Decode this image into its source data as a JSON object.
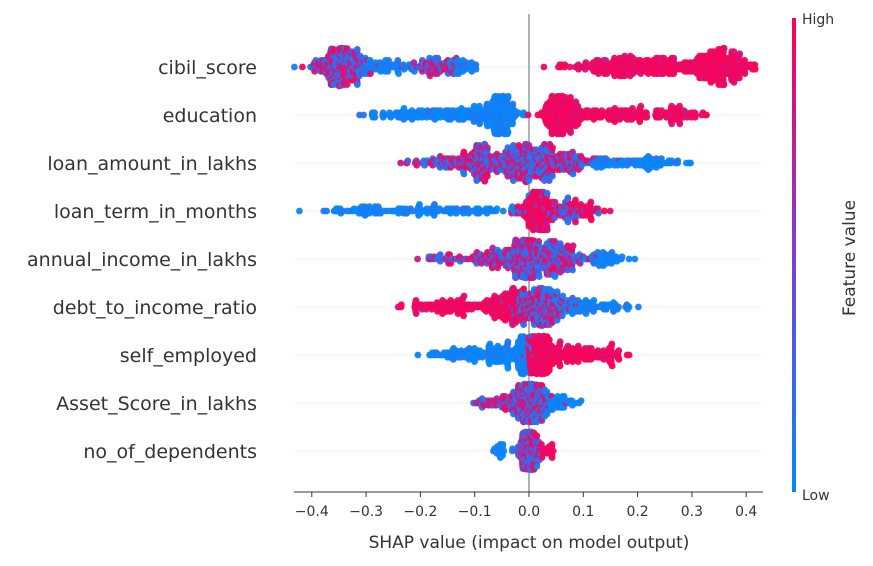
{
  "chart_data": {
    "type": "scatter",
    "subtype": "shap-beeswarm",
    "xlabel": "SHAP value (impact on model output)",
    "xlim": [
      -0.42,
      0.42
    ],
    "xticks": [
      -0.4,
      -0.3,
      -0.2,
      -0.1,
      0.0,
      0.1,
      0.2,
      0.3,
      0.4
    ],
    "xtick_labels": [
      "−0.4",
      "−0.3",
      "−0.2",
      "−0.1",
      "0.0",
      "0.1",
      "0.2",
      "0.3",
      "0.4"
    ],
    "colorbar": {
      "label": "Feature value",
      "high": "High",
      "low": "Low",
      "high_color": "#ff0052",
      "low_color": "#008bfb",
      "mid_color": "#7c3fd0"
    },
    "zero_line": true,
    "grid": false,
    "features": [
      {
        "name": "cibil_score",
        "groups": [
          {
            "center": -0.345,
            "spread": 0.025,
            "count": 260,
            "color": "mix"
          },
          {
            "center": -0.27,
            "spread": 0.03,
            "count": 60,
            "color": "low"
          },
          {
            "center": -0.17,
            "spread": 0.03,
            "count": 90,
            "color": "mix"
          },
          {
            "center": -0.12,
            "spread": 0.015,
            "count": 30,
            "color": "low"
          },
          {
            "center": 0.17,
            "spread": 0.05,
            "count": 180,
            "color": "high"
          },
          {
            "center": 0.25,
            "spread": 0.03,
            "count": 60,
            "color": "high"
          },
          {
            "center": 0.345,
            "spread": 0.03,
            "count": 260,
            "color": "high"
          }
        ]
      },
      {
        "name": "education",
        "groups": [
          {
            "center": -0.22,
            "spread": 0.04,
            "count": 80,
            "color": "low"
          },
          {
            "center": -0.1,
            "spread": 0.04,
            "count": 120,
            "color": "low"
          },
          {
            "center": -0.05,
            "spread": 0.012,
            "count": 180,
            "color": "low"
          },
          {
            "center": 0.055,
            "spread": 0.018,
            "count": 220,
            "color": "high"
          },
          {
            "center": 0.16,
            "spread": 0.05,
            "count": 120,
            "color": "high"
          },
          {
            "center": 0.27,
            "spread": 0.02,
            "count": 60,
            "color": "high"
          }
        ]
      },
      {
        "name": "loan_amount_in_lakhs",
        "groups": [
          {
            "center": -0.16,
            "spread": 0.03,
            "count": 60,
            "color": "mix"
          },
          {
            "center": -0.09,
            "spread": 0.02,
            "count": 140,
            "color": "mix"
          },
          {
            "center": -0.01,
            "spread": 0.03,
            "count": 260,
            "color": "mix"
          },
          {
            "center": 0.06,
            "spread": 0.03,
            "count": 120,
            "color": "mix"
          },
          {
            "center": 0.14,
            "spread": 0.02,
            "count": 40,
            "color": "low"
          },
          {
            "center": 0.23,
            "spread": 0.03,
            "count": 60,
            "color": "low"
          }
        ]
      },
      {
        "name": "loan_term_in_months",
        "groups": [
          {
            "center": -0.3,
            "spread": 0.04,
            "count": 50,
            "color": "low"
          },
          {
            "center": -0.13,
            "spread": 0.08,
            "count": 100,
            "color": "low"
          },
          {
            "center": 0.015,
            "spread": 0.015,
            "count": 200,
            "color": "high"
          },
          {
            "center": 0.06,
            "spread": 0.025,
            "count": 80,
            "color": "mix"
          },
          {
            "center": 0.1,
            "spread": 0.015,
            "count": 30,
            "color": "high"
          }
        ]
      },
      {
        "name": "annual_income_in_lakhs",
        "groups": [
          {
            "center": -0.16,
            "spread": 0.03,
            "count": 30,
            "color": "mix"
          },
          {
            "center": -0.06,
            "spread": 0.025,
            "count": 80,
            "color": "mix"
          },
          {
            "center": 0.0,
            "spread": 0.025,
            "count": 280,
            "color": "mix"
          },
          {
            "center": 0.06,
            "spread": 0.025,
            "count": 100,
            "color": "mix"
          },
          {
            "center": 0.14,
            "spread": 0.02,
            "count": 50,
            "color": "low"
          }
        ]
      },
      {
        "name": "debt_to_income_ratio",
        "groups": [
          {
            "center": -0.15,
            "spread": 0.04,
            "count": 100,
            "color": "high"
          },
          {
            "center": -0.04,
            "spread": 0.025,
            "count": 160,
            "color": "high"
          },
          {
            "center": 0.02,
            "spread": 0.025,
            "count": 220,
            "color": "mix"
          },
          {
            "center": 0.1,
            "spread": 0.04,
            "count": 100,
            "color": "low"
          }
        ]
      },
      {
        "name": "self_employed",
        "groups": [
          {
            "center": -0.13,
            "spread": 0.03,
            "count": 60,
            "color": "low"
          },
          {
            "center": -0.05,
            "spread": 0.025,
            "count": 100,
            "color": "low"
          },
          {
            "center": -0.01,
            "spread": 0.008,
            "count": 80,
            "color": "low"
          },
          {
            "center": 0.02,
            "spread": 0.012,
            "count": 180,
            "color": "high"
          },
          {
            "center": 0.08,
            "spread": 0.04,
            "count": 120,
            "color": "high"
          },
          {
            "center": 0.15,
            "spread": 0.015,
            "count": 30,
            "color": "high"
          }
        ]
      },
      {
        "name": "Asset_Score_in_lakhs",
        "groups": [
          {
            "center": -0.06,
            "spread": 0.02,
            "count": 50,
            "color": "mix"
          },
          {
            "center": 0.0,
            "spread": 0.018,
            "count": 240,
            "color": "mix"
          },
          {
            "center": 0.05,
            "spread": 0.02,
            "count": 60,
            "color": "low"
          }
        ]
      },
      {
        "name": "no_of_dependents",
        "groups": [
          {
            "center": -0.05,
            "spread": 0.012,
            "count": 20,
            "color": "low"
          },
          {
            "center": 0.0,
            "spread": 0.01,
            "count": 180,
            "color": "mix"
          },
          {
            "center": 0.035,
            "spread": 0.008,
            "count": 20,
            "color": "high"
          }
        ]
      }
    ]
  }
}
